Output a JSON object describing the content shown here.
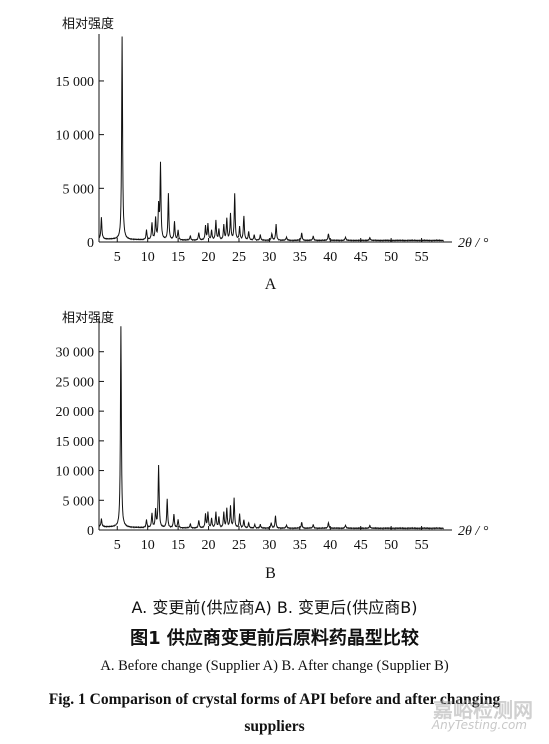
{
  "chart_data": [
    {
      "type": "line",
      "panel_label": "A",
      "ylabel": "相对强度",
      "xlabel": "2θ / °",
      "xlim": [
        2,
        60
      ],
      "ylim": [
        0,
        19000
      ],
      "xticks": [
        5,
        10,
        15,
        20,
        25,
        30,
        35,
        40,
        45,
        50,
        55
      ],
      "yticks": [
        0,
        5000,
        10000,
        15000
      ],
      "ytick_labels": [
        "0",
        "5 000",
        "10 000",
        "15 000"
      ],
      "baseline": 150,
      "peaks": [
        [
          2.4,
          2000
        ],
        [
          5.8,
          18900
        ],
        [
          9.8,
          900
        ],
        [
          10.7,
          1500
        ],
        [
          11.3,
          2000
        ],
        [
          11.8,
          3000
        ],
        [
          12.1,
          7000
        ],
        [
          13.4,
          4300
        ],
        [
          14.4,
          1700
        ],
        [
          15.0,
          900
        ],
        [
          17.0,
          400
        ],
        [
          18.4,
          700
        ],
        [
          19.5,
          1300
        ],
        [
          19.9,
          1500
        ],
        [
          20.5,
          900
        ],
        [
          21.2,
          1800
        ],
        [
          21.7,
          1000
        ],
        [
          22.5,
          1400
        ],
        [
          23.0,
          2000
        ],
        [
          23.6,
          2400
        ],
        [
          24.3,
          4300
        ],
        [
          25.1,
          1200
        ],
        [
          25.8,
          2200
        ],
        [
          26.6,
          800
        ],
        [
          27.5,
          500
        ],
        [
          28.5,
          500
        ],
        [
          30.4,
          600
        ],
        [
          31.1,
          1500
        ],
        [
          32.8,
          300
        ],
        [
          35.3,
          700
        ],
        [
          37.2,
          400
        ],
        [
          39.7,
          600
        ],
        [
          42.5,
          300
        ],
        [
          46.5,
          250
        ]
      ]
    },
    {
      "type": "line",
      "panel_label": "B",
      "ylabel": "相对强度",
      "xlabel": "2θ / °",
      "xlim": [
        2,
        60
      ],
      "ylim": [
        0,
        35000
      ],
      "xticks": [
        5,
        10,
        15,
        20,
        25,
        30,
        35,
        40,
        45,
        50,
        55
      ],
      "yticks": [
        0,
        5000,
        10000,
        15000,
        20000,
        25000,
        30000
      ],
      "ytick_labels": [
        "0",
        "5 000",
        "10 000",
        "15 000",
        "20 000",
        "25 000",
        "30 000"
      ],
      "baseline": 300,
      "peaks": [
        [
          2.4,
          1300
        ],
        [
          5.6,
          33800
        ],
        [
          9.8,
          1300
        ],
        [
          10.7,
          2300
        ],
        [
          11.3,
          3000
        ],
        [
          11.8,
          10500
        ],
        [
          13.2,
          4800
        ],
        [
          14.3,
          2300
        ],
        [
          15.0,
          1400
        ],
        [
          17.0,
          700
        ],
        [
          18.4,
          1300
        ],
        [
          19.5,
          2300
        ],
        [
          19.9,
          2600
        ],
        [
          20.5,
          1600
        ],
        [
          21.2,
          2600
        ],
        [
          21.7,
          1800
        ],
        [
          22.5,
          2600
        ],
        [
          23.0,
          3300
        ],
        [
          23.6,
          3600
        ],
        [
          24.2,
          5000
        ],
        [
          25.1,
          2300
        ],
        [
          25.8,
          1300
        ],
        [
          26.6,
          900
        ],
        [
          27.6,
          600
        ],
        [
          28.5,
          600
        ],
        [
          30.3,
          900
        ],
        [
          31.0,
          2100
        ],
        [
          32.8,
          500
        ],
        [
          35.3,
          1000
        ],
        [
          37.2,
          600
        ],
        [
          39.7,
          900
        ],
        [
          42.5,
          500
        ],
        [
          46.5,
          450
        ]
      ]
    }
  ],
  "captions": {
    "panels_cn": "A. 变更前(供应商A)    B. 变更后(供应商B)",
    "figure_cn": "图1    供应商变更前后原料药晶型比较",
    "panels_en": "A. Before change (Supplier A)    B. After change (Supplier B)",
    "figure_en": "Fig. 1    Comparison of crystal forms of API before and after changing suppliers"
  },
  "watermark": {
    "cn": "嘉峪检测网",
    "en": "AnyTesting.com"
  },
  "colors": {
    "line": "#111111",
    "watermark": "#aaaaaa"
  }
}
